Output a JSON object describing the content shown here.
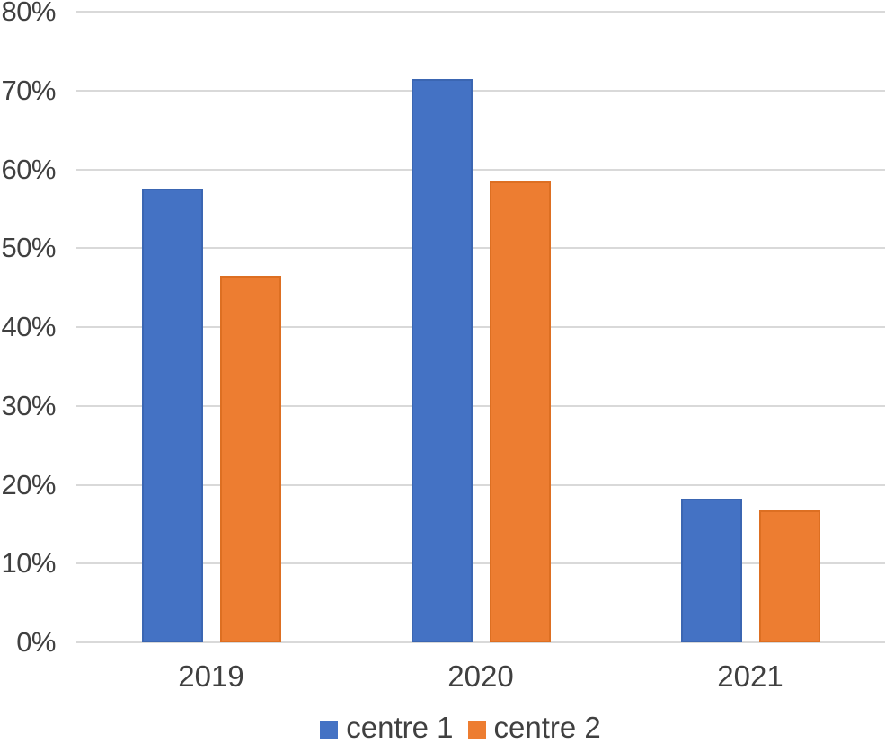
{
  "chart_data": {
    "type": "bar",
    "title": "",
    "xlabel": "",
    "ylabel": "",
    "categories": [
      "2019",
      "2020",
      "2021"
    ],
    "series": [
      {
        "name": "centre 1",
        "color": "#4472C4",
        "border_color": "#3B66B2",
        "values": [
          57.5,
          71.5,
          18.2
        ]
      },
      {
        "name": "centre 2",
        "color": "#ED7D31",
        "border_color": "#DD6F22",
        "values": [
          46.5,
          58.5,
          16.8
        ]
      }
    ],
    "y_axis": {
      "min": 0,
      "max": 80,
      "step": 10,
      "tick_labels": [
        "0%",
        "10%",
        "20%",
        "30%",
        "40%",
        "50%",
        "60%",
        "70%",
        "80%"
      ]
    },
    "grid": true,
    "legend_position": "bottom",
    "colors": {
      "text": "#404040",
      "gridline": "#D9D9D9",
      "background": "#FFFFFF"
    }
  }
}
